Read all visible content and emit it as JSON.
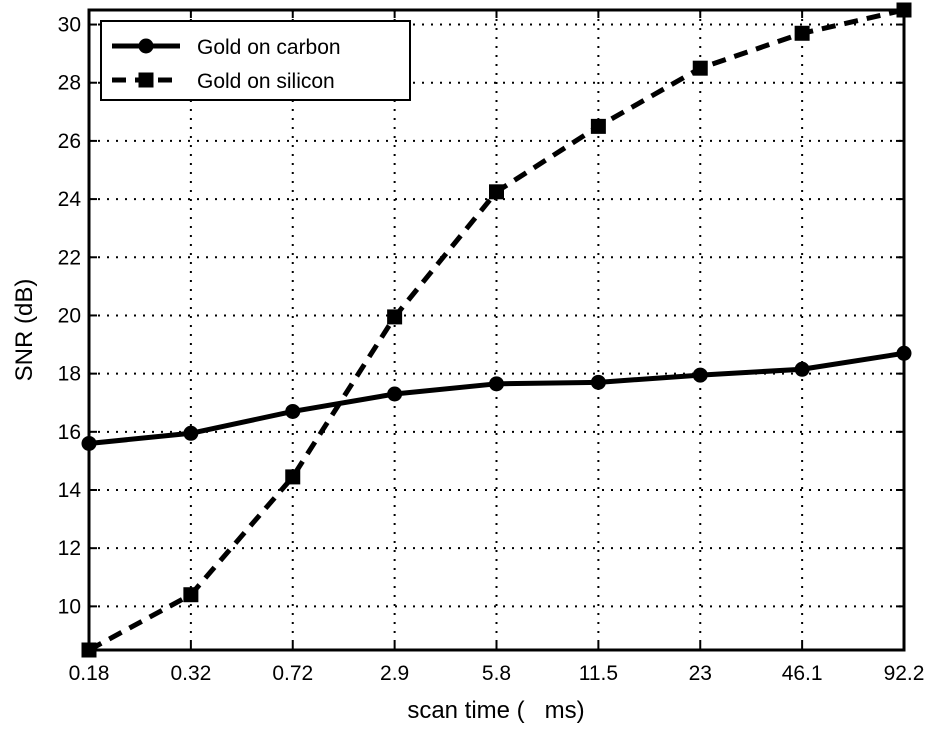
{
  "chart_data": {
    "type": "line",
    "title": "",
    "xlabel": "scan time (   ms)",
    "ylabel": "SNR (dB)",
    "categories": [
      "0.18",
      "0.32",
      "0.72",
      "2.9",
      "5.8",
      "11.5",
      "23",
      "46.1",
      "92.2"
    ],
    "ylim": [
      8.5,
      30.5
    ],
    "yticks": [
      10,
      12,
      14,
      16,
      18,
      20,
      22,
      24,
      26,
      28,
      30
    ],
    "grid": true,
    "legend_position": "top-left",
    "series": [
      {
        "name": "Gold on carbon",
        "marker": "circle",
        "line_style": "solid",
        "color": "#000000",
        "values": [
          15.6,
          15.95,
          16.7,
          17.3,
          17.65,
          17.7,
          17.95,
          18.15,
          18.7
        ]
      },
      {
        "name": "Gold on silicon",
        "marker": "square",
        "line_style": "dashed",
        "color": "#000000",
        "values": [
          8.5,
          10.4,
          14.45,
          19.95,
          24.25,
          26.5,
          28.5,
          29.7,
          30.5
        ]
      }
    ]
  }
}
